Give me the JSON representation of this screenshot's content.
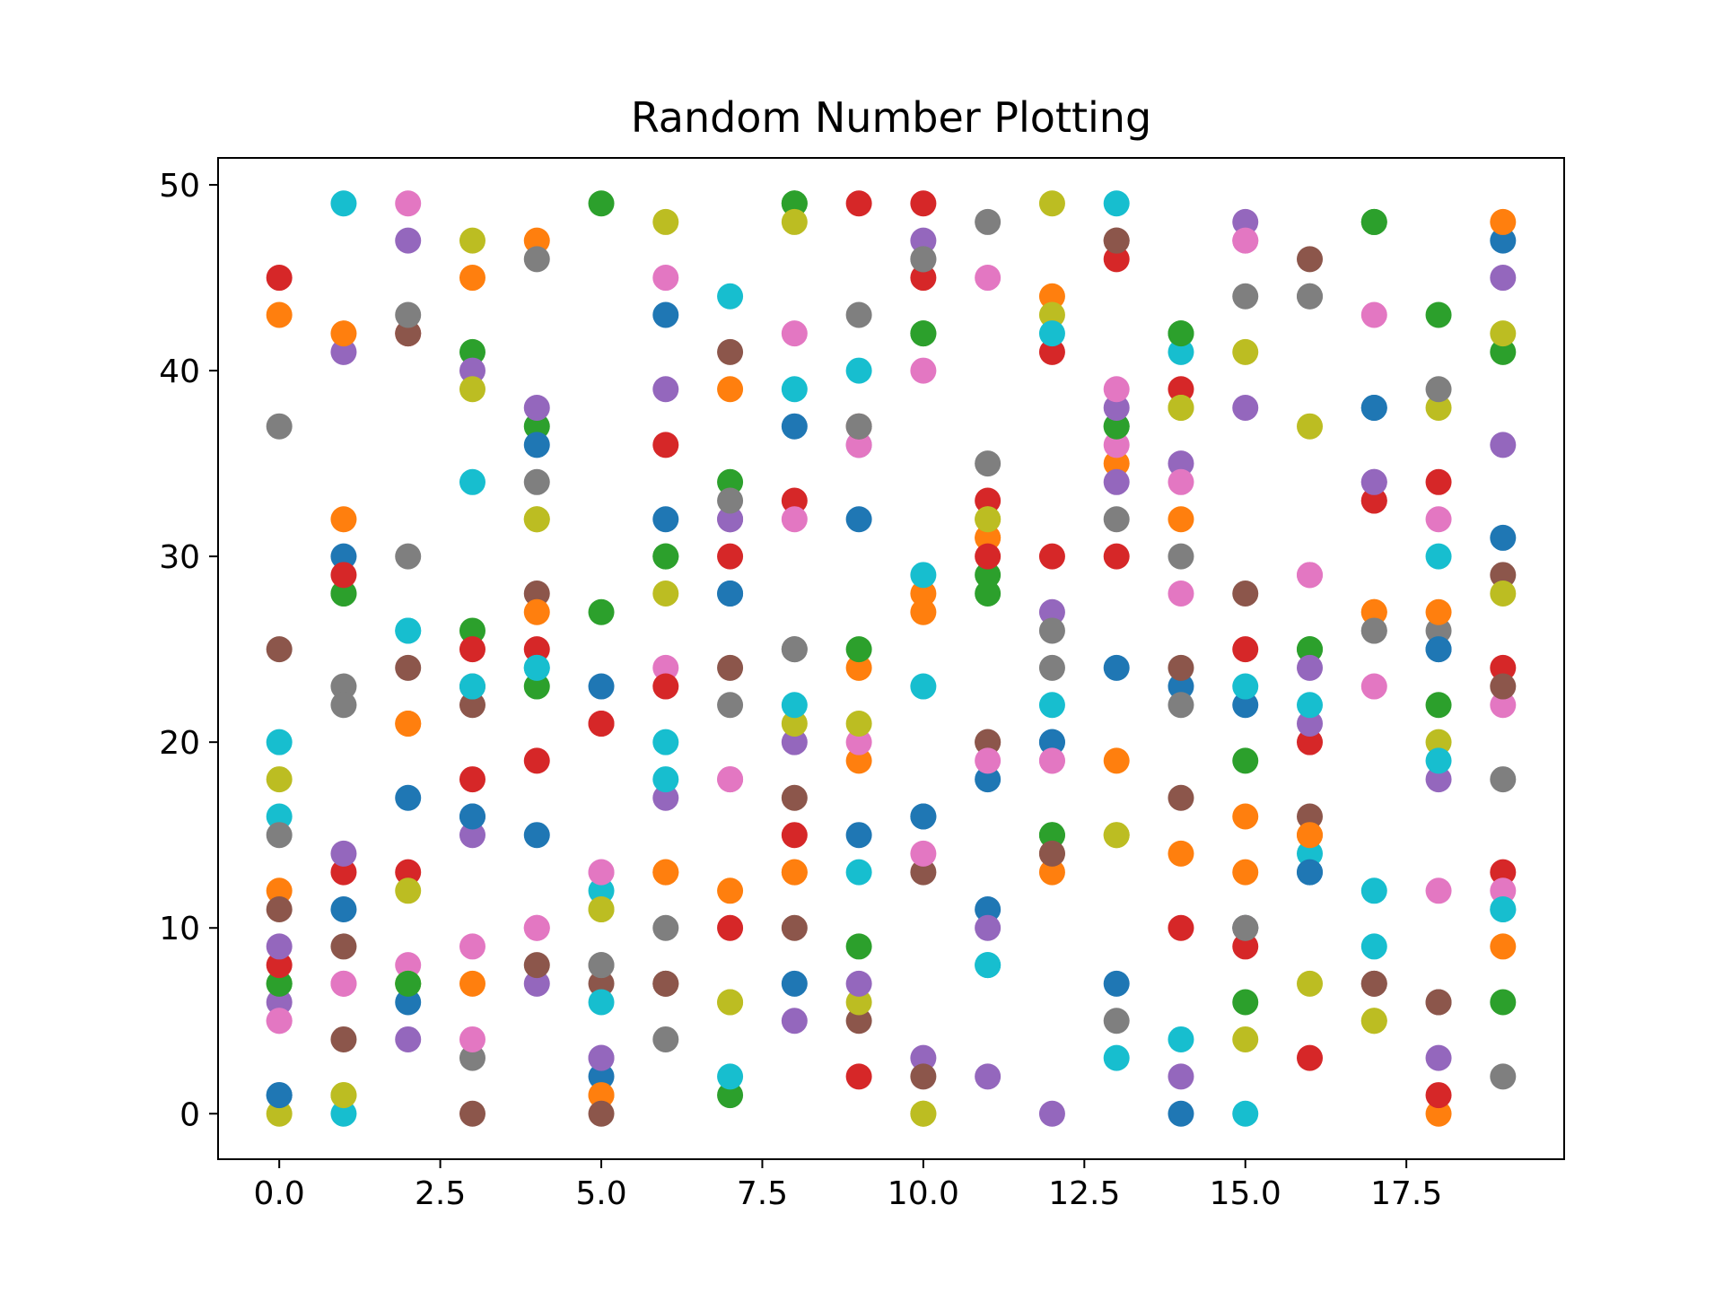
{
  "chart_data": {
    "type": "scatter",
    "title": "Random Number Plotting",
    "xlabel": "",
    "ylabel": "",
    "xlim": [
      -0.95,
      19.95
    ],
    "ylim": [
      -2.45,
      51.45
    ],
    "xticks": [
      "0.0",
      "2.5",
      "5.0",
      "7.5",
      "10.0",
      "12.5",
      "15.0",
      "17.5"
    ],
    "yticks": [
      "0",
      "10",
      "20",
      "30",
      "40",
      "50"
    ],
    "grid": false,
    "legend": "none",
    "palette": [
      "#1f77b4",
      "#ff7f0e",
      "#2ca02c",
      "#d62728",
      "#9467bd",
      "#8c564b",
      "#e377c2",
      "#7f7f7f",
      "#bcbd22",
      "#17becf"
    ],
    "series": [
      {
        "x": 0,
        "y": [
          1,
          43,
          7,
          45,
          6,
          25,
          5,
          37,
          0,
          16,
          1,
          12,
          7,
          8,
          9,
          11,
          5,
          15,
          18,
          20
        ]
      },
      {
        "x": 1,
        "y": [
          11,
          32,
          28,
          13,
          41,
          9,
          7,
          23,
          1,
          0,
          30,
          42,
          28,
          29,
          14,
          4,
          7,
          22,
          1,
          49
        ]
      },
      {
        "x": 2,
        "y": [
          17,
          21,
          7,
          42,
          47,
          24,
          8,
          30,
          7,
          26,
          6,
          21,
          7,
          13,
          4,
          42,
          49,
          43,
          12,
          26
        ]
      },
      {
        "x": 3,
        "y": [
          16,
          45,
          26,
          18,
          15,
          22,
          9,
          3,
          47,
          34,
          16,
          7,
          41,
          25,
          40,
          0,
          4,
          23,
          39,
          23
        ]
      },
      {
        "x": 4,
        "y": [
          15,
          47,
          37,
          25,
          38,
          28,
          10,
          46,
          32,
          24,
          36,
          27,
          23,
          19,
          7,
          8,
          10,
          34,
          32,
          24
        ]
      },
      {
        "x": 5,
        "y": [
          23,
          1,
          27,
          21,
          3,
          7,
          13,
          8,
          11,
          12,
          2,
          1,
          49,
          21,
          3,
          0,
          13,
          8,
          11,
          6
        ]
      },
      {
        "x": 6,
        "y": [
          43,
          13,
          30,
          36,
          17,
          7,
          24,
          4,
          28,
          18,
          32,
          13,
          30,
          23,
          39,
          7,
          45,
          10,
          48,
          20
        ]
      },
      {
        "x": 7,
        "y": [
          28,
          12,
          34,
          10,
          32,
          24,
          18,
          22,
          6,
          44,
          28,
          39,
          1,
          30,
          32,
          41,
          18,
          33,
          6,
          2
        ]
      },
      {
        "x": 8,
        "y": [
          37,
          13,
          49,
          15,
          20,
          10,
          42,
          25,
          21,
          39,
          7,
          13,
          49,
          33,
          5,
          17,
          32,
          25,
          48,
          22
        ]
      },
      {
        "x": 9,
        "y": [
          32,
          24,
          25,
          49,
          36,
          5,
          36,
          43,
          6,
          13,
          15,
          19,
          9,
          2,
          7,
          37,
          20,
          37,
          21,
          40
        ]
      },
      {
        "x": 10,
        "y": [
          16,
          28,
          42,
          45,
          47,
          13,
          14,
          46,
          0,
          29,
          16,
          27,
          42,
          49,
          3,
          2,
          40,
          46,
          0,
          23
        ]
      },
      {
        "x": 11,
        "y": [
          11,
          31,
          29,
          33,
          10,
          20,
          45,
          35,
          32,
          8,
          18,
          31,
          28,
          30,
          2,
          20,
          19,
          48,
          32,
          8
        ]
      },
      {
        "x": 12,
        "y": [
          20,
          44,
          15,
          41,
          27,
          14,
          19,
          24,
          49,
          22,
          20,
          13,
          15,
          30,
          0,
          14,
          19,
          26,
          43,
          42
        ]
      },
      {
        "x": 13,
        "y": [
          24,
          35,
          37,
          46,
          34,
          47,
          36,
          32,
          15,
          49,
          7,
          19,
          37,
          30,
          38,
          47,
          39,
          5,
          15,
          3
        ]
      },
      {
        "x": 14,
        "y": [
          23,
          32,
          42,
          39,
          35,
          24,
          28,
          30,
          38,
          41,
          0,
          14,
          42,
          10,
          2,
          17,
          34,
          22,
          38,
          4
        ]
      },
      {
        "x": 15,
        "y": [
          22,
          13,
          19,
          25,
          38,
          28,
          47,
          44,
          41,
          23,
          10,
          16,
          6,
          9,
          48,
          10,
          47,
          10,
          4,
          0
        ]
      },
      {
        "x": 16,
        "y": [
          13,
          15,
          25,
          20,
          21,
          16,
          29,
          44,
          37,
          14,
          13,
          15,
          25,
          3,
          24,
          46,
          29,
          44,
          7,
          22
        ]
      },
      {
        "x": 17,
        "y": [
          38,
          27,
          48,
          33,
          34,
          7,
          23,
          26,
          5,
          12,
          38,
          27,
          48,
          33,
          34,
          7,
          43,
          26,
          5,
          9
        ]
      },
      {
        "x": 18,
        "y": [
          25,
          0,
          22,
          1,
          3,
          6,
          12,
          26,
          38,
          30,
          25,
          27,
          43,
          34,
          18,
          6,
          32,
          39,
          20,
          19
        ]
      },
      {
        "x": 19,
        "y": [
          47,
          9,
          6,
          24,
          45,
          29,
          22,
          2,
          28,
          11,
          31,
          48,
          41,
          13,
          36,
          23,
          12,
          18,
          42,
          11
        ]
      }
    ]
  }
}
